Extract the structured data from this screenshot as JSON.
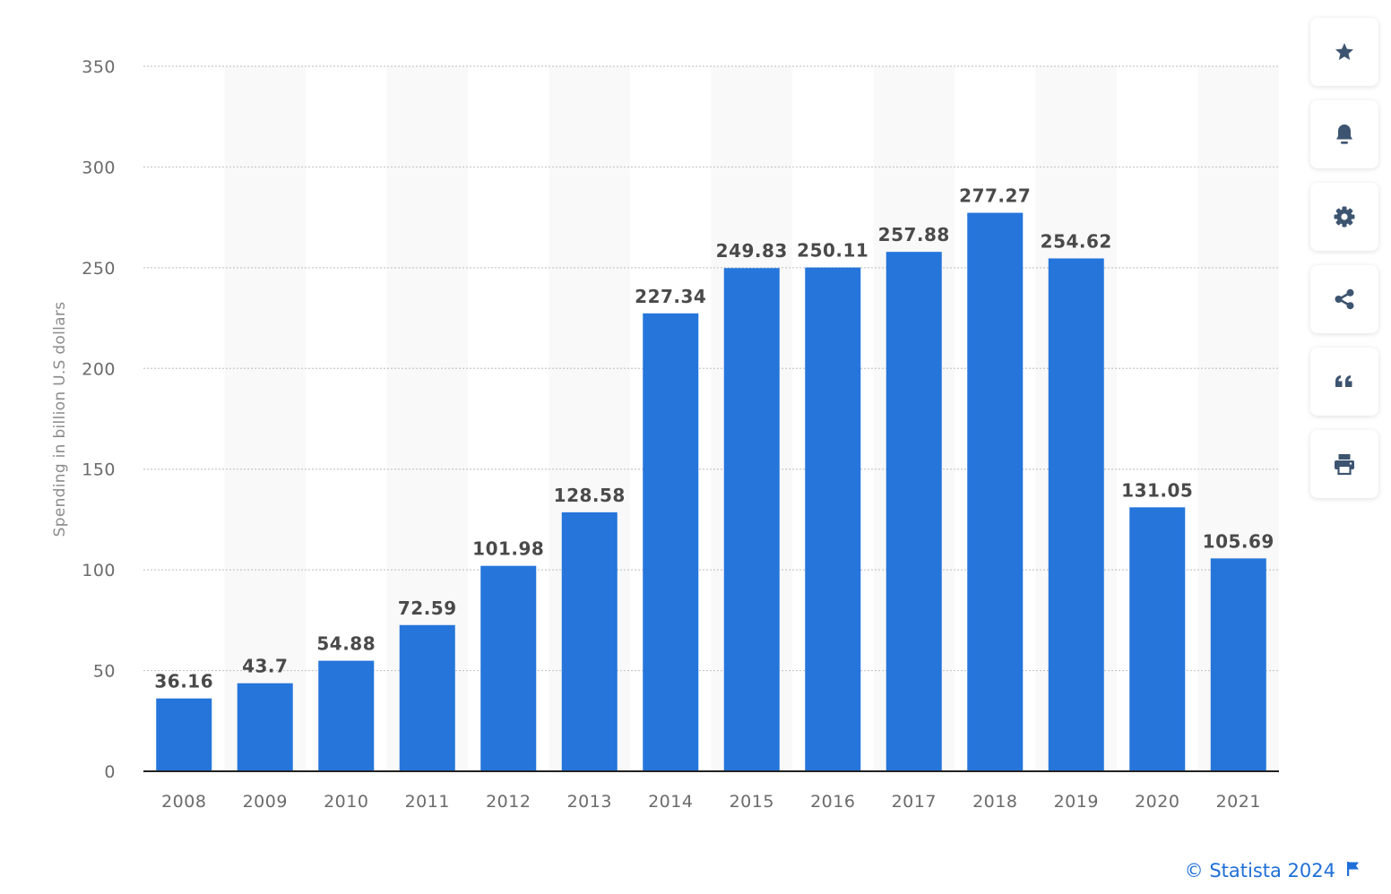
{
  "chart_data": {
    "type": "bar",
    "categories": [
      "2008",
      "2009",
      "2010",
      "2011",
      "2012",
      "2013",
      "2014",
      "2015",
      "2016",
      "2017",
      "2018",
      "2019",
      "2020",
      "2021"
    ],
    "values": [
      36.16,
      43.7,
      54.88,
      72.59,
      101.98,
      128.58,
      227.34,
      249.83,
      250.11,
      257.88,
      277.27,
      254.62,
      131.05,
      105.69
    ],
    "value_labels": [
      "36.16",
      "43.7",
      "54.88",
      "72.59",
      "101.98",
      "128.58",
      "227.34",
      "249.83",
      "250.11",
      "257.88",
      "277.27",
      "254.62",
      "131.05",
      "105.69"
    ],
    "ylabel": "Spending in billion U.S dollars",
    "ylim": [
      0,
      350
    ],
    "yticks": [
      0,
      50,
      100,
      150,
      200,
      250,
      300,
      350
    ],
    "grid": true,
    "bar_color": "#2575db",
    "stripe_color": "#f9f9f9"
  },
  "toolbar": {
    "buttons": [
      {
        "name": "favorite",
        "icon": "star-icon"
      },
      {
        "name": "notification",
        "icon": "bell-icon"
      },
      {
        "name": "settings",
        "icon": "gear-icon"
      },
      {
        "name": "share",
        "icon": "share-icon"
      },
      {
        "name": "cite",
        "icon": "quote-icon"
      },
      {
        "name": "print",
        "icon": "printer-icon"
      }
    ],
    "icon_color": "#3d5470"
  },
  "source": {
    "text": "© Statista 2024",
    "icon": "flag-icon",
    "color": "#1f6fd8"
  }
}
